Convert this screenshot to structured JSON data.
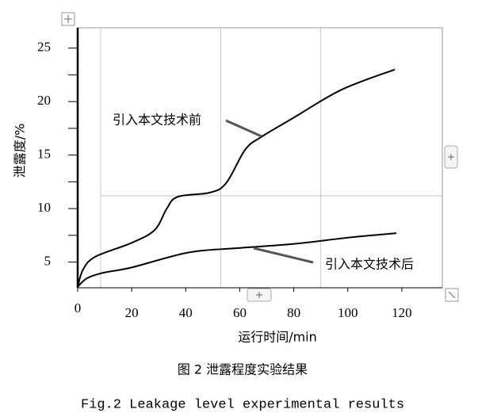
{
  "chart_data": {
    "type": "line",
    "x_label": "运行时间/min",
    "y_label": "泄露度/%",
    "caption_cn": "图 2 泄露程度实验结果",
    "caption_en": "Fig.2 Leakage level experimental results",
    "xlim": [
      0,
      135
    ],
    "xticks": [
      0,
      20,
      40,
      60,
      80,
      100,
      120
    ],
    "ylim": [
      2.6,
      26.9
    ],
    "yticks": [
      5,
      10,
      15,
      20,
      25
    ],
    "y_minor_ticks": [
      7.5,
      12.5,
      17.5,
      22.5
    ],
    "guide_x": [
      8.5,
      53,
      90
    ],
    "guide_y": [
      11.2
    ],
    "series": [
      {
        "name": "引入本文技术前",
        "color": "#000000",
        "x": [
          0,
          2,
          6.5,
          20,
          28.5,
          33,
          37,
          49,
          55,
          62,
          68,
          80,
          97.6,
          117.4
        ],
        "values": [
          2.7,
          4.3,
          5.5,
          6.8,
          8.0,
          10.0,
          11.1,
          11.5,
          12.4,
          15.5,
          16.7,
          18.5,
          21.1,
          23.0
        ]
      },
      {
        "name": "引入本文技术后",
        "color": "#000000",
        "x": [
          0,
          3.5,
          9.4,
          20,
          41,
          59,
          80,
          100.6,
          118
        ],
        "values": [
          2.7,
          3.5,
          4.0,
          4.5,
          5.9,
          6.3,
          6.7,
          7.3,
          7.7
        ]
      }
    ]
  }
}
